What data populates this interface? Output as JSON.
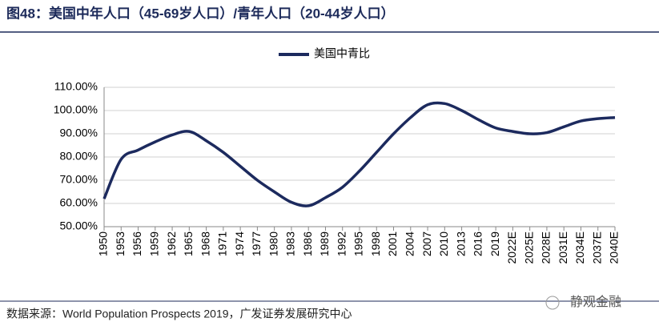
{
  "chart_data": {
    "type": "line",
    "title": "图48：美国中年人口（45-69岁人口）/青年人口（20-44岁人口）",
    "source": "数据来源：World Population Prospects 2019，广发证券发展研究中心",
    "watermark": "静观金融",
    "categories": [
      "1950",
      "1953",
      "1956",
      "1959",
      "1962",
      "1965",
      "1968",
      "1971",
      "1974",
      "1977",
      "1980",
      "1983",
      "1986",
      "1989",
      "1992",
      "1995",
      "1998",
      "2001",
      "2004",
      "2007",
      "2010",
      "2013",
      "2016",
      "2019",
      "2022E",
      "2025E",
      "2028E",
      "2031E",
      "2034E",
      "2037E",
      "2040E"
    ],
    "series": [
      {
        "name": "美国中青比",
        "color": "#1c2a5e",
        "values": [
          62,
          79,
          83,
          86.5,
          89.5,
          91,
          87,
          82,
          76,
          70,
          65,
          60.5,
          59,
          62.5,
          67,
          74,
          82,
          90,
          97,
          102.5,
          103,
          100,
          96,
          92.5,
          91,
          90,
          90.5,
          93,
          95.5,
          96.5,
          97
        ]
      }
    ],
    "ylim": [
      50,
      110
    ],
    "yticks": [
      {
        "value": 50,
        "label": "50.00%"
      },
      {
        "value": 60,
        "label": "60.00%"
      },
      {
        "value": 70,
        "label": "70.00%"
      },
      {
        "value": 80,
        "label": "80.00%"
      },
      {
        "value": 90,
        "label": "90.00%"
      },
      {
        "value": 100,
        "label": "100.00%"
      },
      {
        "value": 110,
        "label": "110.00%"
      }
    ],
    "grid": true,
    "legend": "top"
  }
}
